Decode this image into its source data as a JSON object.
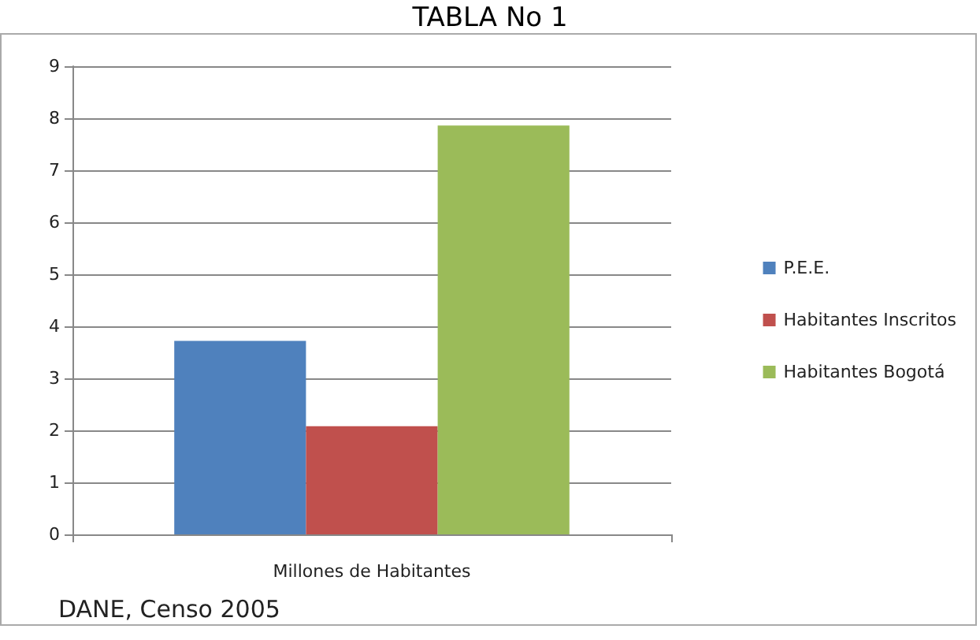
{
  "chart_data": {
    "type": "bar",
    "title": "TABLA No 1",
    "categories": [
      "Millones de Habitantes"
    ],
    "series": [
      {
        "name": "P.E.E.",
        "color": "#4f81bd",
        "values": [
          3.72
        ]
      },
      {
        "name": "Habitantes Inscritos",
        "color": "#c0504d",
        "values": [
          2.08
        ]
      },
      {
        "name": "Habitantes Bogotá",
        "color": "#9bbb59",
        "values": [
          7.86
        ]
      }
    ],
    "ylim": [
      0,
      9
    ],
    "yticks": [
      0,
      1,
      2,
      3,
      4,
      5,
      6,
      7,
      8,
      9
    ],
    "grid": "y",
    "legend": "right",
    "annotations": [
      "DANE, Censo 2005"
    ]
  }
}
